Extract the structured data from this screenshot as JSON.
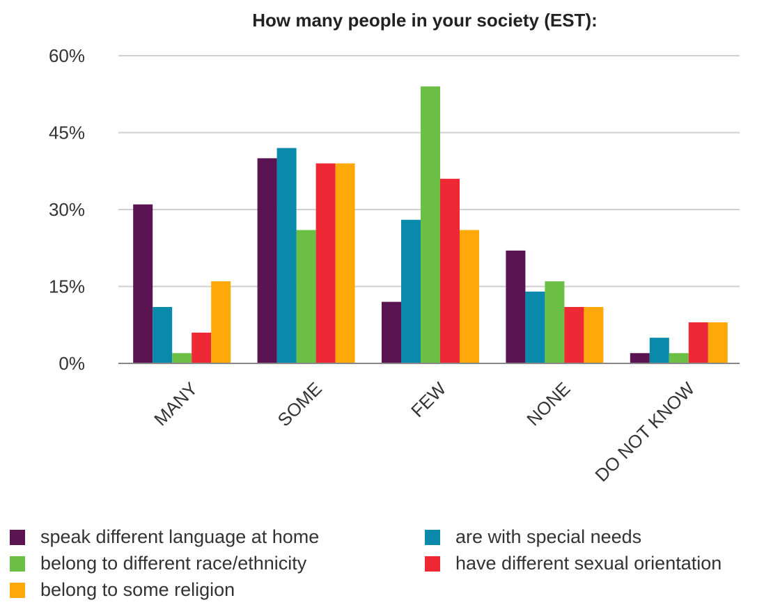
{
  "chart_data": {
    "type": "bar",
    "title": "How many people in your society (EST):",
    "xlabel": "",
    "ylabel": "",
    "ylim": [
      0,
      60
    ],
    "yticks": [
      "0%",
      "15%",
      "30%",
      "45%",
      "60%"
    ],
    "ytick_values": [
      0,
      15,
      30,
      45,
      60
    ],
    "grid": true,
    "legend_position": "bottom",
    "categories": [
      "MANY",
      "SOME",
      "FEW",
      "NONE",
      "DO NOT KNOW"
    ],
    "series": [
      {
        "name": "speak different language at home",
        "color": "#5a1452",
        "values": [
          31,
          40,
          12,
          22,
          2
        ]
      },
      {
        "name": "are with special needs",
        "color": "#0a8aaa",
        "values": [
          11,
          42,
          28,
          14,
          5
        ]
      },
      {
        "name": "belong to different race/ethnicity",
        "color": "#6bbf45",
        "values": [
          2,
          26,
          54,
          16,
          2
        ]
      },
      {
        "name": "have different sexual orientation",
        "color": "#ee2835",
        "values": [
          6,
          39,
          36,
          11,
          8
        ]
      },
      {
        "name": "belong to some religion",
        "color": "#ffa80a",
        "values": [
          16,
          39,
          26,
          11,
          8
        ]
      }
    ]
  }
}
